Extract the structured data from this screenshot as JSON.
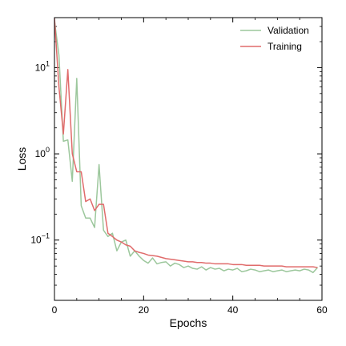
{
  "chart_data": {
    "type": "line",
    "xlabel": "Epochs",
    "ylabel": "Loss",
    "xlim": [
      0,
      60
    ],
    "ylim": [
      0.02,
      38
    ],
    "yscale": "log",
    "grid": false,
    "legend_position": "top-right",
    "x_ticks": [
      {
        "value": 0,
        "label": "0"
      },
      {
        "value": 20,
        "label": "20"
      },
      {
        "value": 40,
        "label": "40"
      },
      {
        "value": 60,
        "label": "60"
      }
    ],
    "y_ticks": [
      {
        "value": 0.1,
        "base": "10",
        "exp": "−1"
      },
      {
        "value": 1,
        "base": "10",
        "exp": "0"
      },
      {
        "value": 10,
        "base": "10",
        "exp": "1"
      }
    ],
    "series": [
      {
        "name": "Validation",
        "color": "#9cc79c",
        "x": [
          0,
          1,
          2,
          3,
          4,
          5,
          6,
          7,
          8,
          9,
          10,
          11,
          12,
          13,
          14,
          15,
          16,
          17,
          18,
          19,
          20,
          21,
          22,
          23,
          24,
          25,
          26,
          27,
          28,
          29,
          30,
          31,
          32,
          33,
          34,
          35,
          36,
          37,
          38,
          39,
          40,
          41,
          42,
          43,
          44,
          45,
          46,
          47,
          48,
          49,
          50,
          51,
          52,
          53,
          54,
          55,
          56,
          57,
          58,
          59
        ],
        "values": [
          35,
          14,
          1.4,
          1.45,
          0.48,
          7.5,
          0.25,
          0.18,
          0.18,
          0.14,
          0.75,
          0.13,
          0.11,
          0.12,
          0.075,
          0.095,
          0.1,
          0.065,
          0.075,
          0.065,
          0.058,
          0.054,
          0.062,
          0.053,
          0.055,
          0.056,
          0.05,
          0.054,
          0.052,
          0.048,
          0.05,
          0.047,
          0.046,
          0.049,
          0.045,
          0.048,
          0.046,
          0.047,
          0.044,
          0.046,
          0.045,
          0.047,
          0.043,
          0.044,
          0.046,
          0.045,
          0.043,
          0.044,
          0.045,
          0.043,
          0.044,
          0.045,
          0.043,
          0.044,
          0.045,
          0.044,
          0.046,
          0.045,
          0.042,
          0.048
        ]
      },
      {
        "name": "Training",
        "color": "#e06b6b",
        "x": [
          0,
          1,
          2,
          3,
          4,
          5,
          6,
          7,
          8,
          9,
          10,
          11,
          12,
          13,
          14,
          15,
          16,
          17,
          18,
          19,
          20,
          21,
          22,
          23,
          24,
          25,
          26,
          27,
          28,
          29,
          30,
          31,
          32,
          33,
          34,
          35,
          36,
          37,
          38,
          39,
          40,
          41,
          42,
          43,
          44,
          45,
          46,
          47,
          48,
          49,
          50,
          51,
          52,
          53,
          54,
          55,
          56,
          57,
          58,
          59
        ],
        "values": [
          38,
          6,
          1.7,
          9.5,
          1.0,
          0.62,
          0.62,
          0.28,
          0.3,
          0.22,
          0.26,
          0.26,
          0.12,
          0.11,
          0.1,
          0.095,
          0.088,
          0.085,
          0.075,
          0.072,
          0.07,
          0.067,
          0.066,
          0.065,
          0.063,
          0.061,
          0.06,
          0.059,
          0.058,
          0.057,
          0.056,
          0.056,
          0.055,
          0.055,
          0.054,
          0.054,
          0.053,
          0.053,
          0.053,
          0.053,
          0.052,
          0.052,
          0.052,
          0.051,
          0.051,
          0.051,
          0.051,
          0.05,
          0.05,
          0.05,
          0.05,
          0.05,
          0.049,
          0.049,
          0.049,
          0.049,
          0.049,
          0.049,
          0.049,
          0.048
        ]
      }
    ]
  }
}
